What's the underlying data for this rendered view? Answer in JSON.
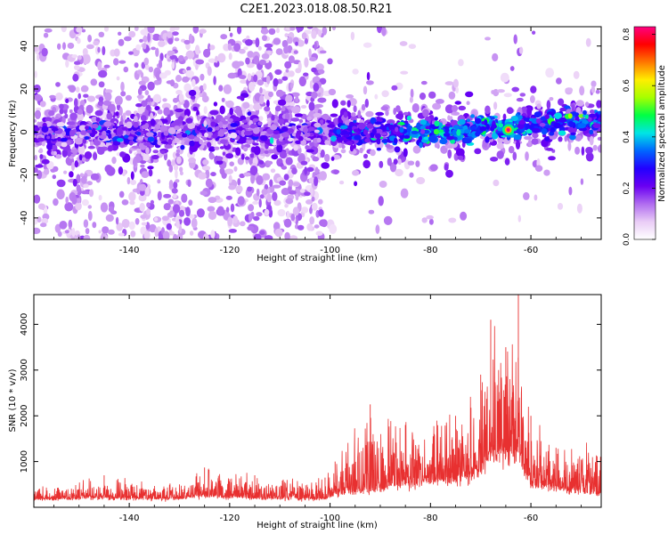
{
  "title": "C2E1.2023.018.08.50.R21",
  "chart_data": [
    {
      "type": "heatmap",
      "xlabel": "Height of straight line (km)",
      "ylabel": "Frequency (Hz)",
      "xlim": [
        -159,
        -46
      ],
      "ylim": [
        -50,
        49
      ],
      "x_ticks": [
        -140,
        -120,
        -100,
        -80,
        -60
      ],
      "y_ticks": [
        -40,
        -20,
        0,
        20,
        40
      ],
      "grid": false,
      "colorbar": {
        "label": "Normalized spectral amplitude",
        "range": [
          0,
          0.83
        ],
        "ticks": [
          0.0,
          0.2,
          0.4,
          0.6,
          0.8
        ],
        "colormap": [
          "#ffffff",
          "#e9ccf6",
          "#b06cf0",
          "#6a00f2",
          "#2200ff",
          "#0066ff",
          "#00e5e5",
          "#00ff44",
          "#a6ff00",
          "#ffee00",
          "#ff7700",
          "#ff0000",
          "#ff0080"
        ]
      },
      "description_band": {
        "center_hz": [
          [
            -159,
            -1
          ],
          [
            -100,
            0
          ],
          [
            -80,
            0
          ],
          [
            -60,
            3
          ],
          [
            -46,
            6
          ]
        ],
        "peak_amplitude": {
          "x": -64.5,
          "y": 1,
          "value": 0.83
        }
      }
    },
    {
      "type": "line",
      "xlabel": "Height of straight line (km)",
      "ylabel": "SNR (10 * v/v)",
      "xlim": [
        -159,
        -46
      ],
      "ylim": [
        0,
        4650
      ],
      "x_ticks": [
        -140,
        -120,
        -100,
        -80,
        -60
      ],
      "y_ticks": [
        1000,
        2000,
        3000,
        4000
      ],
      "grid": false,
      "series": [
        {
          "color": "#e83030",
          "envelope": [
            {
              "x": -159,
              "base": 180,
              "peak": 400
            },
            {
              "x": -145,
              "base": 200,
              "peak": 700
            },
            {
              "x": -130,
              "base": 180,
              "peak": 500
            },
            {
              "x": -125,
              "base": 250,
              "peak": 870
            },
            {
              "x": -115,
              "base": 200,
              "peak": 700
            },
            {
              "x": -101,
              "base": 180,
              "peak": 650
            },
            {
              "x": -99,
              "base": 300,
              "peak": 1000
            },
            {
              "x": -92,
              "base": 350,
              "peak": 2250
            },
            {
              "x": -85,
              "base": 500,
              "peak": 1800
            },
            {
              "x": -75,
              "base": 600,
              "peak": 2000
            },
            {
              "x": -70,
              "base": 800,
              "peak": 2900
            },
            {
              "x": -68,
              "base": 1200,
              "peak": 4100
            },
            {
              "x": -65,
              "base": 1100,
              "peak": 3500
            },
            {
              "x": -62.5,
              "base": 1200,
              "peak": 4650
            },
            {
              "x": -60,
              "base": 500,
              "peak": 2000
            },
            {
              "x": -55,
              "base": 400,
              "peak": 1300
            },
            {
              "x": -46,
              "base": 300,
              "peak": 1400
            }
          ]
        }
      ]
    }
  ]
}
